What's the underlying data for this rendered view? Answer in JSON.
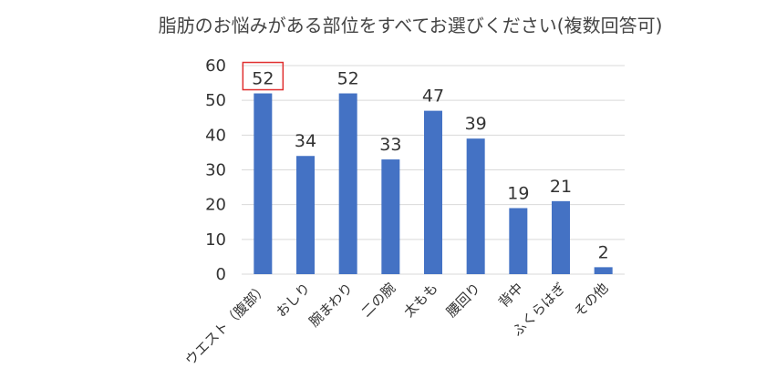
{
  "chart_data": {
    "type": "bar",
    "title": "脂肪のお悩みがある部位をすべてお選びください(複数回答可)",
    "categories": [
      "ウエスト（腹部）",
      "おしり",
      "腕まわり",
      "二の腕",
      "太もも",
      "腰回り",
      "背中",
      "ふくらはぎ",
      "その他"
    ],
    "values": [
      52,
      34,
      52,
      33,
      47,
      39,
      19,
      21,
      2
    ],
    "ylim": [
      0,
      60
    ],
    "yticks": [
      "0",
      "10",
      "20",
      "30",
      "40",
      "50",
      "60"
    ],
    "grid": true,
    "legend": "none",
    "highlighted_category": "ウエスト（腹部）",
    "colors": {
      "bar": "#4472C4",
      "grid": "#d9d9d9",
      "highlight_box": "#e03030"
    }
  }
}
